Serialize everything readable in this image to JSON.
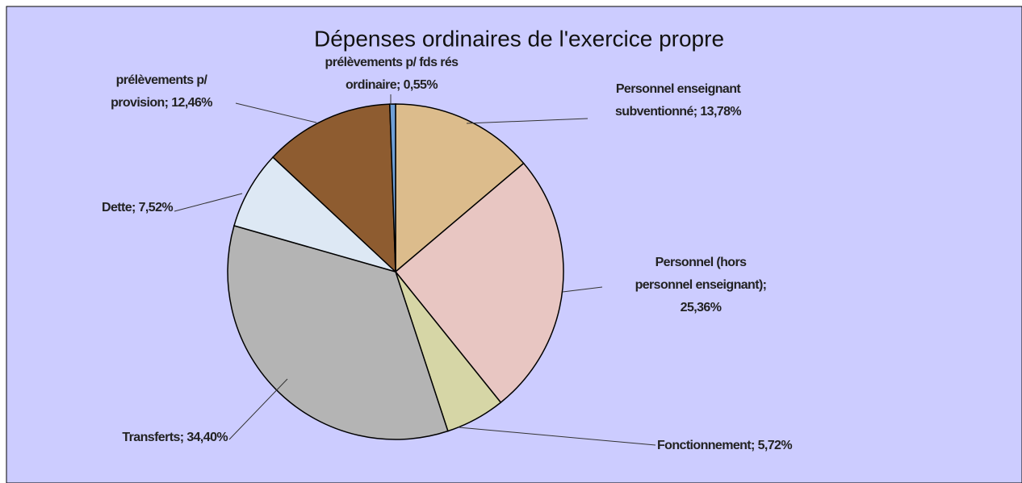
{
  "chart_data": {
    "type": "pie",
    "title": "Dépenses ordinaires de l'exercice propre",
    "values": [
      13.78,
      25.36,
      5.72,
      34.4,
      7.52,
      12.46,
      0.55
    ],
    "value_labels": [
      [
        "Personnel enseignant",
        "subventionné; 13,78%"
      ],
      [
        "Personnel (hors",
        "personnel enseignant);",
        "25,36%"
      ],
      [
        "Fonctionnement; 5,72%"
      ],
      [
        "Transferts; 34,40%"
      ],
      [
        "Dette; 7,52%"
      ],
      [
        "prélèvements p/",
        "provision; 12,46%"
      ],
      [
        "prélèvements p/ fds rés",
        "ordinaire; 0,55%"
      ]
    ],
    "colors": [
      "#dcbc8c",
      "#e8c6c2",
      "#d6d6a6",
      "#b4b4b4",
      "#dde8f4",
      "#8e5c30",
      "#6f9fd6"
    ]
  }
}
